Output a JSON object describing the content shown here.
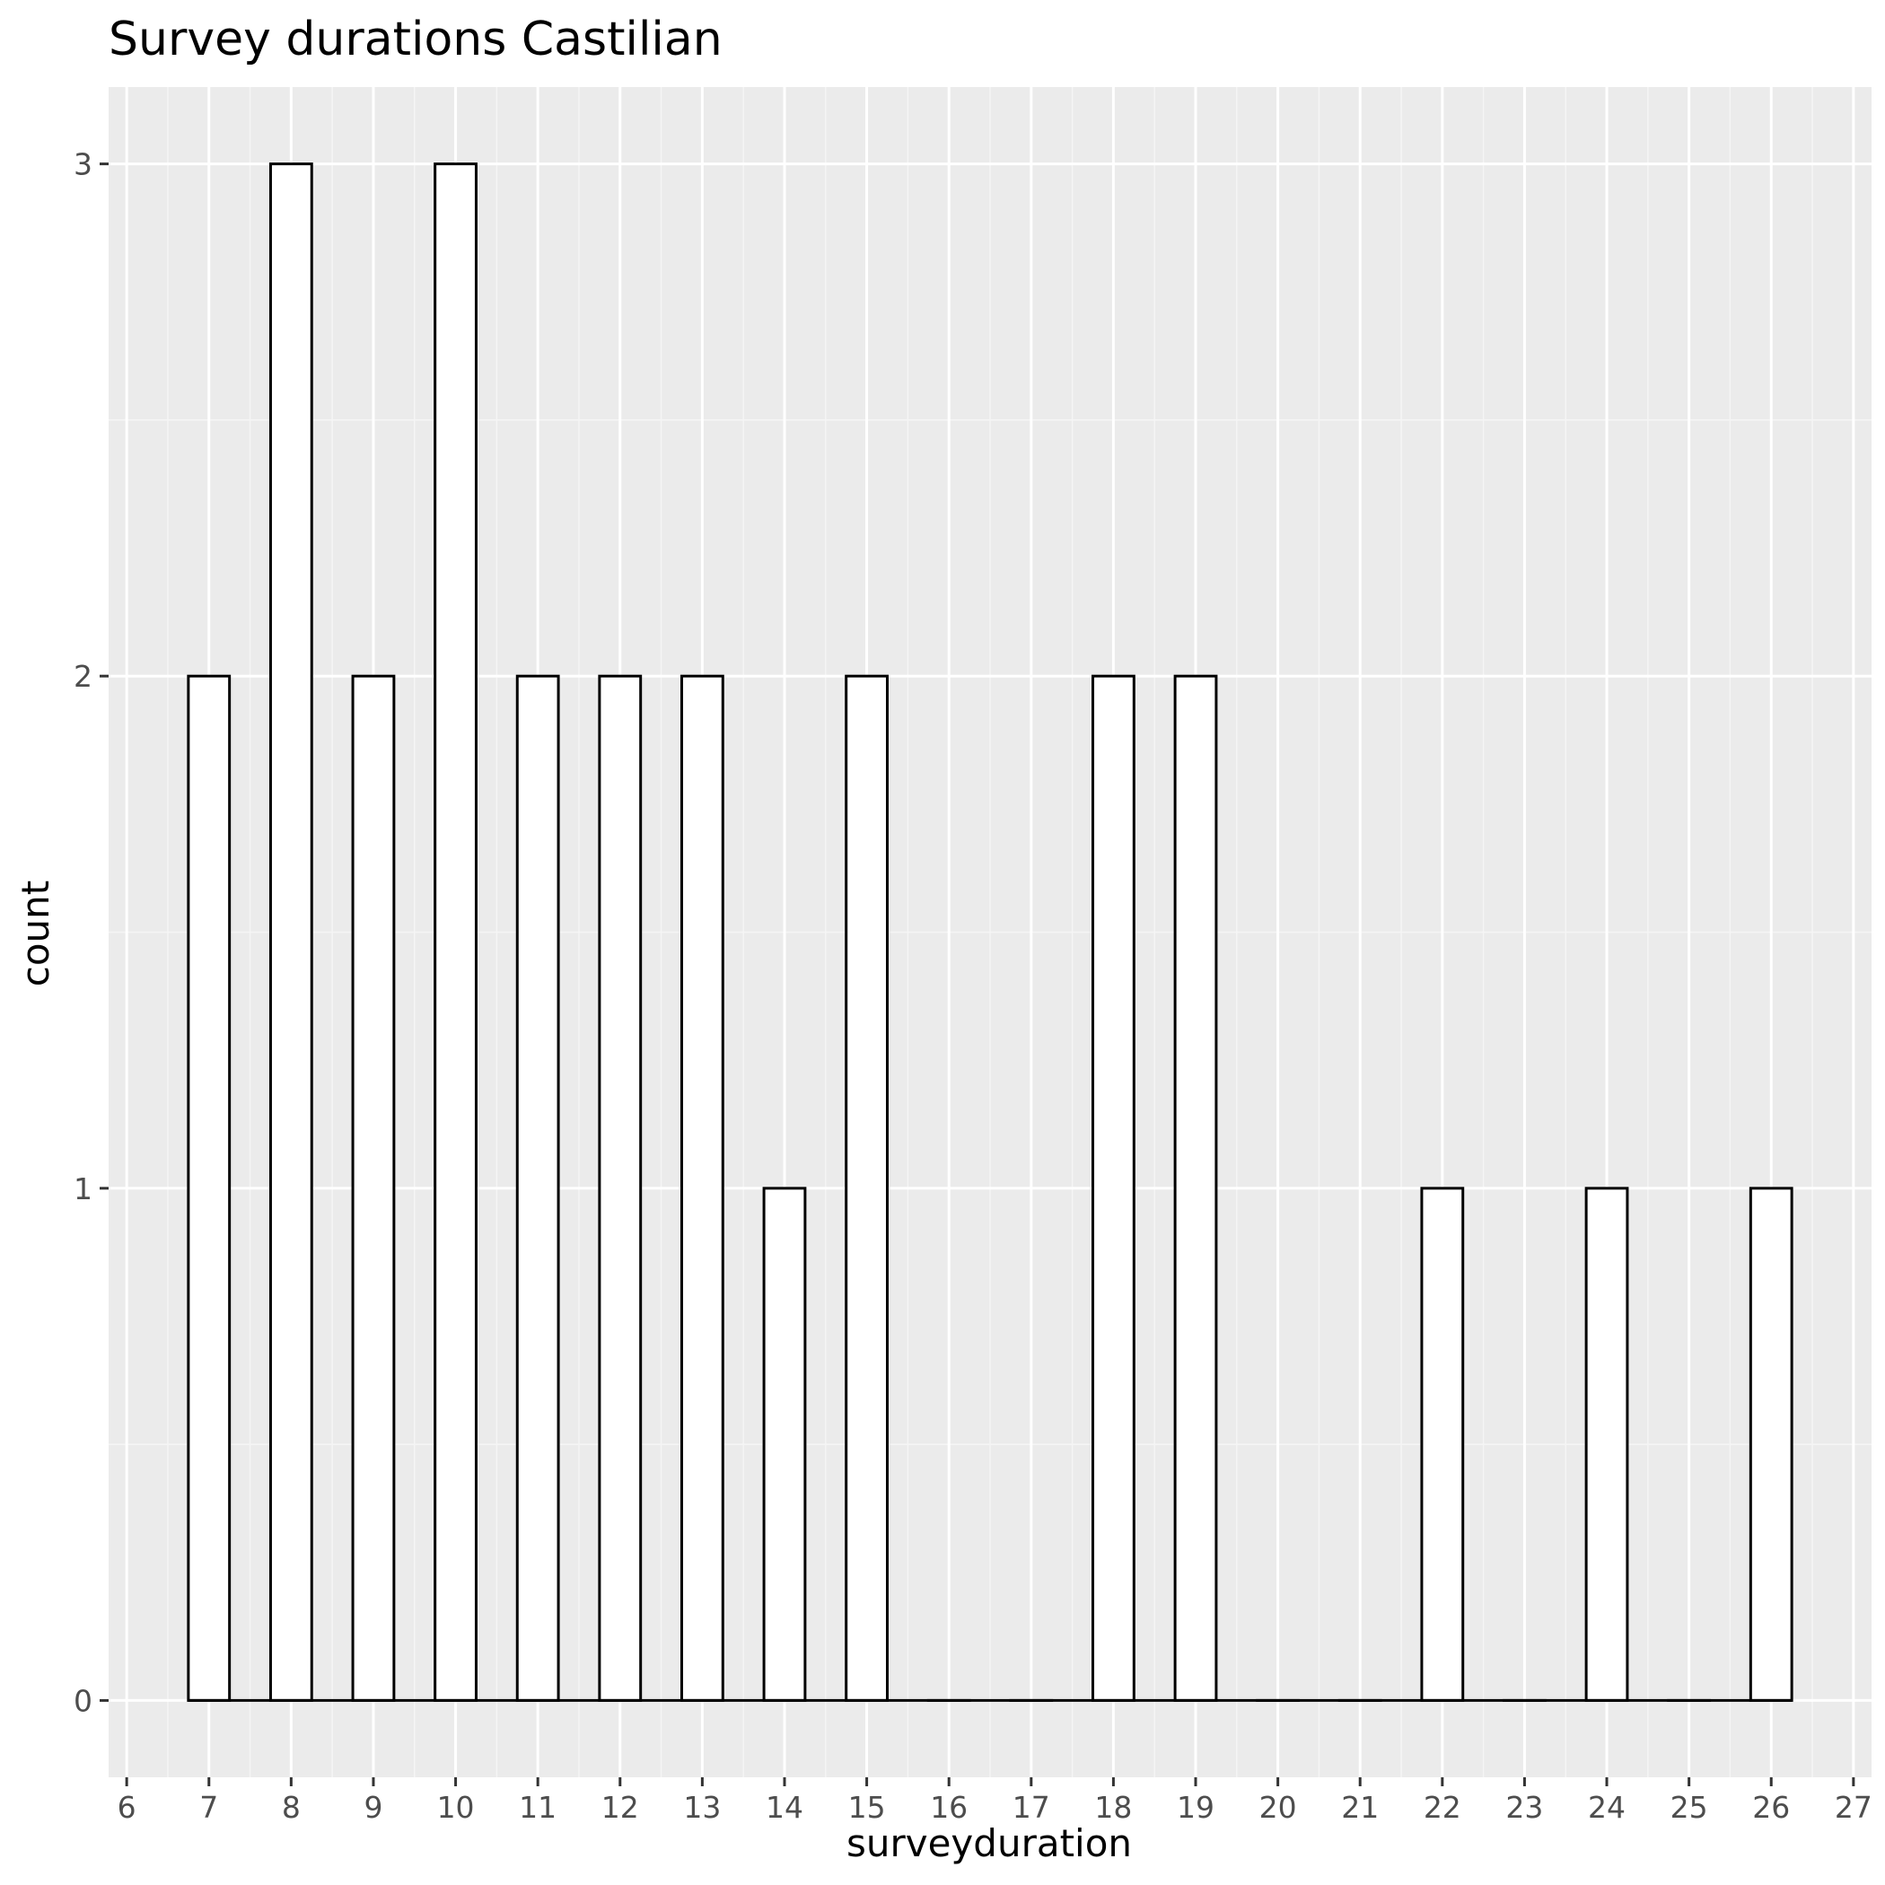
{
  "chart_data": {
    "type": "bar",
    "title": "Survey durations Castilian",
    "xlabel": "surveyduration",
    "ylabel": "count",
    "x_ticks": [
      6,
      7,
      8,
      9,
      10,
      11,
      12,
      13,
      14,
      15,
      16,
      17,
      18,
      19,
      20,
      21,
      22,
      23,
      24,
      25,
      26,
      27
    ],
    "y_ticks": [
      0,
      1,
      2,
      3
    ],
    "xlim": [
      5.78,
      27.22
    ],
    "ylim": [
      -0.15,
      3.15
    ],
    "bar_width": 0.5,
    "categories": [
      7,
      8,
      9,
      10,
      11,
      12,
      13,
      14,
      15,
      16,
      17,
      18,
      19,
      20,
      21,
      22,
      23,
      24,
      25,
      26
    ],
    "values": [
      2,
      3,
      2,
      3,
      2,
      2,
      2,
      1,
      2,
      0,
      0,
      2,
      2,
      0,
      0,
      1,
      0,
      1,
      0,
      1
    ],
    "colors": {
      "panel_background": "#ebebeb",
      "grid_major": "#ffffff",
      "grid_minor": "#f5f5f5",
      "bar_fill": "#ffffff",
      "bar_outline": "#000000"
    },
    "grid": true
  }
}
